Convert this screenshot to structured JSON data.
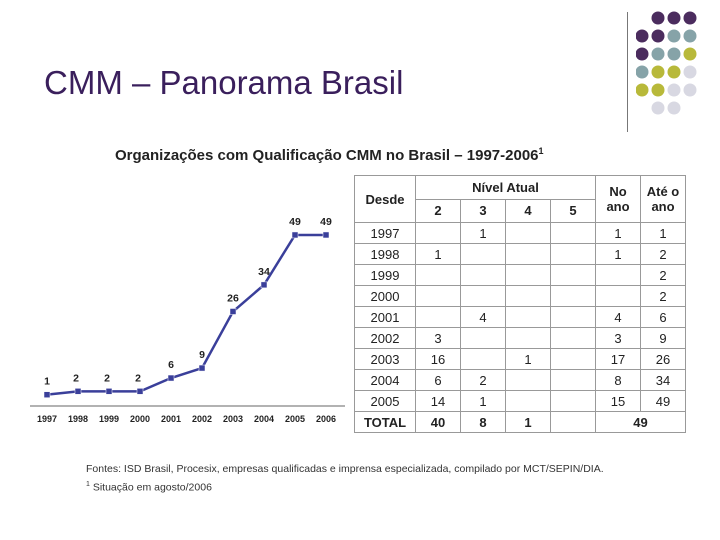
{
  "slide": {
    "title": "CMM – Panorama Brasil"
  },
  "decor": {
    "dot_colors": [
      "#4b2c5e",
      "#86a3a8",
      "#b8b93a",
      "#d8d8e2"
    ]
  },
  "chart_data": [
    {
      "type": "line",
      "title": "Organizações com Qualificação CMM no Brasil – 1997-2006",
      "title_footnote_mark": "1",
      "x": [
        "1997",
        "1998",
        "1999",
        "2000",
        "2001",
        "2002",
        "2003",
        "2004",
        "2005",
        "2006"
      ],
      "values": [
        1,
        2,
        2,
        2,
        6,
        9,
        26,
        34,
        49,
        49
      ],
      "color": "#3a3f9a",
      "ylim": [
        0,
        55
      ],
      "grid": false
    },
    {
      "type": "table",
      "headers": {
        "desde": "Desde",
        "nivel_atual": "Nível Atual",
        "levels": [
          "2",
          "3",
          "4",
          "5"
        ],
        "no_ano": "No ano",
        "ate_o_ano": "Até o ano"
      },
      "rows": [
        {
          "year": "1997",
          "n2": "",
          "n3": "1",
          "n4": "",
          "n5": "",
          "no_ano": "1",
          "ate": "1"
        },
        {
          "year": "1998",
          "n2": "1",
          "n3": "",
          "n4": "",
          "n5": "",
          "no_ano": "1",
          "ate": "2"
        },
        {
          "year": "1999",
          "n2": "",
          "n3": "",
          "n4": "",
          "n5": "",
          "no_ano": "",
          "ate": "2"
        },
        {
          "year": "2000",
          "n2": "",
          "n3": "",
          "n4": "",
          "n5": "",
          "no_ano": "",
          "ate": "2"
        },
        {
          "year": "2001",
          "n2": "",
          "n3": "4",
          "n4": "",
          "n5": "",
          "no_ano": "4",
          "ate": "6"
        },
        {
          "year": "2002",
          "n2": "3",
          "n3": "",
          "n4": "",
          "n5": "",
          "no_ano": "3",
          "ate": "9"
        },
        {
          "year": "2003",
          "n2": "16",
          "n3": "",
          "n4": "1",
          "n5": "",
          "no_ano": "17",
          "ate": "26"
        },
        {
          "year": "2004",
          "n2": "6",
          "n3": "2",
          "n4": "",
          "n5": "",
          "no_ano": "8",
          "ate": "34"
        },
        {
          "year": "2005",
          "n2": "14",
          "n3": "1",
          "n4": "",
          "n5": "",
          "no_ano": "15",
          "ate": "49"
        }
      ],
      "total": {
        "label": "TOTAL",
        "n2": "40",
        "n3": "8",
        "n4": "1",
        "n5": "",
        "sum": "49"
      }
    }
  ],
  "footnotes": {
    "sources": "Fontes: ISD Brasil, Procesix, empresas qualificadas e imprensa especializada, compilado por MCT/SEPIN/DIA.",
    "mark": "1",
    "situation": "Situação em agosto/2006"
  }
}
